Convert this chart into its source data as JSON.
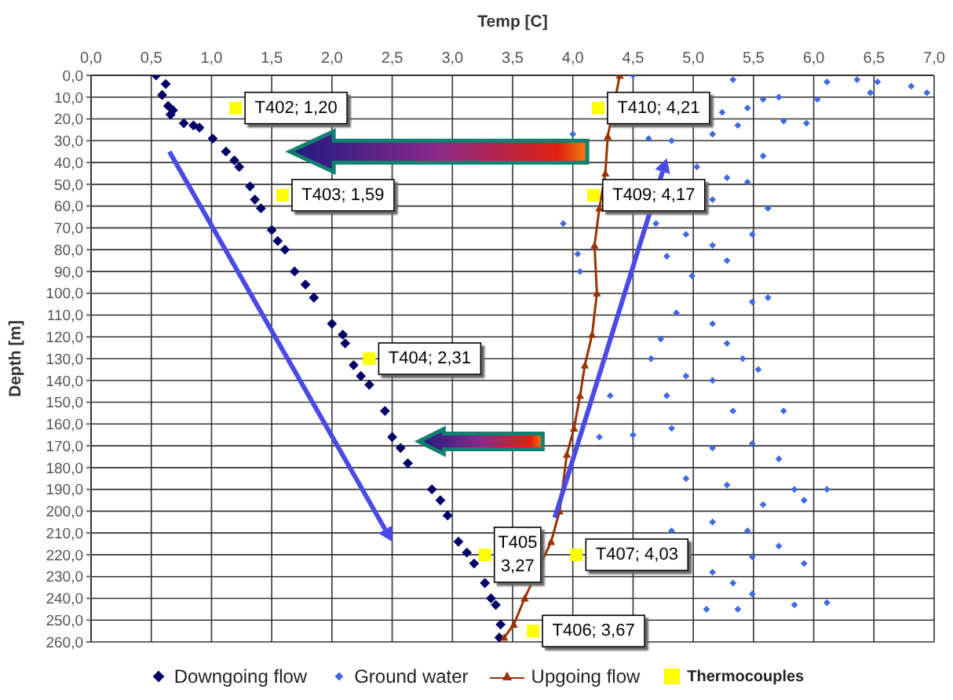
{
  "chart_data": {
    "type": "scatter",
    "xlabel": "Temp [C]",
    "ylabel": "Depth [m]",
    "xlim": [
      0,
      7
    ],
    "xticks": [
      {
        "value": 0,
        "label": "0,0"
      },
      {
        "value": 0.5,
        "label": "0,5"
      },
      {
        "value": 1,
        "label": "1,0"
      },
      {
        "value": 1.5,
        "label": "1,5"
      },
      {
        "value": 2,
        "label": "2,0"
      },
      {
        "value": 2.5,
        "label": "2,5"
      },
      {
        "value": 3,
        "label": "3,0"
      },
      {
        "value": 3.5,
        "label": "3,5"
      },
      {
        "value": 4,
        "label": "4,0"
      },
      {
        "value": 4.5,
        "label": "4,5"
      },
      {
        "value": 5,
        "label": "5,0"
      },
      {
        "value": 5.5,
        "label": "5,5"
      },
      {
        "value": 6,
        "label": "6,0"
      },
      {
        "value": 6.5,
        "label": "6,5"
      },
      {
        "value": 7,
        "label": "7,0"
      }
    ],
    "ylim": [
      260,
      0
    ],
    "yticks": [
      {
        "value": 0,
        "label": "0,0"
      },
      {
        "value": 10,
        "label": "10,0"
      },
      {
        "value": 20,
        "label": "20,0"
      },
      {
        "value": 30,
        "label": "30,0"
      },
      {
        "value": 40,
        "label": "40,0"
      },
      {
        "value": 50,
        "label": "50,0"
      },
      {
        "value": 60,
        "label": "60,0"
      },
      {
        "value": 70,
        "label": "70,0"
      },
      {
        "value": 80,
        "label": "80,0"
      },
      {
        "value": 90,
        "label": "90,0"
      },
      {
        "value": 100,
        "label": "100,0"
      },
      {
        "value": 110,
        "label": "110,0"
      },
      {
        "value": 120,
        "label": "120,0"
      },
      {
        "value": 130,
        "label": "130,0"
      },
      {
        "value": 140,
        "label": "140,0"
      },
      {
        "value": 150,
        "label": "150,0"
      },
      {
        "value": 160,
        "label": "160,0"
      },
      {
        "value": 170,
        "label": "170,0"
      },
      {
        "value": 180,
        "label": "180,0"
      },
      {
        "value": 190,
        "label": "190,0"
      },
      {
        "value": 200,
        "label": "200,0"
      },
      {
        "value": 210,
        "label": "210,0"
      },
      {
        "value": 220,
        "label": "220,0"
      },
      {
        "value": 230,
        "label": "230,0"
      },
      {
        "value": 240,
        "label": "240,0"
      },
      {
        "value": 250,
        "label": "250,0"
      },
      {
        "value": 260,
        "label": "260,0"
      }
    ],
    "grid": true,
    "legend": "bottom",
    "series": [
      {
        "name": "Downgoing flow",
        "marker": "diamond",
        "color": "#000066",
        "x": [
          0.54,
          0.62,
          0.59,
          0.64,
          0.68,
          0.66,
          0.77,
          0.85,
          0.9,
          1.01,
          1.12,
          1.19,
          1.23,
          1.32,
          1.36,
          1.41,
          1.5,
          1.55,
          1.61,
          1.69,
          1.78,
          1.85,
          2.0,
          2.09,
          2.11,
          2.18,
          2.24,
          2.31,
          2.44,
          2.5,
          2.57,
          2.63,
          2.83,
          2.9,
          2.96,
          3.05,
          3.12,
          3.18,
          3.27,
          3.32,
          3.36,
          3.4,
          3.39
        ],
        "values": [
          0,
          4,
          9,
          14,
          16,
          18,
          22,
          23,
          24,
          29,
          35,
          39,
          42,
          51,
          57,
          61,
          71,
          76,
          80,
          90,
          96,
          102,
          114,
          119,
          123,
          133,
          138,
          142,
          154,
          166,
          171,
          178,
          190,
          195,
          202,
          214,
          219,
          224,
          233,
          240,
          243,
          252,
          258
        ]
      },
      {
        "name": "Ground water",
        "marker": "diamond",
        "color": "#4169e1",
        "x": [
          4.5,
          5.33,
          6.11,
          6.36,
          6.53,
          6.81,
          6.94,
          6.47,
          6.03,
          5.71,
          5.58,
          5.24,
          5.45,
          5.75,
          5.94,
          5.37,
          4.63,
          4.82,
          5.16,
          4.0,
          5.58,
          5.03,
          5.28,
          5.45,
          5.16,
          5.62,
          4.69,
          3.92,
          4.94,
          5.16,
          5.49,
          4.04,
          4.78,
          5.28,
          4.06,
          4.99,
          5.49,
          5.62,
          4.86,
          5.16,
          4.73,
          5.28,
          5.41,
          4.65,
          4.94,
          5.16,
          5.54,
          4.78,
          4.31,
          5.33,
          5.75,
          4.82,
          4.22,
          4.5,
          5.16,
          5.49,
          5.71,
          4.94,
          5.28,
          5.84,
          6.11,
          5.58,
          5.92,
          5.16,
          4.82,
          5.45,
          5.49,
          5.71,
          5.16,
          5.92,
          5.33,
          5.11,
          5.37,
          5.84,
          6.11,
          5.49
        ],
        "values": [
          0,
          2,
          3,
          2,
          3,
          5,
          8,
          8,
          11,
          10,
          11,
          17,
          15,
          21,
          22,
          23,
          29,
          30,
          27,
          27,
          37,
          42,
          47,
          49,
          57,
          61,
          68,
          68,
          73,
          78,
          73,
          82,
          83,
          85,
          90,
          92,
          104,
          102,
          109,
          114,
          121,
          123,
          130,
          130,
          138,
          140,
          135,
          147,
          147,
          154,
          154,
          162,
          166,
          165,
          171,
          169,
          176,
          185,
          188,
          190,
          190,
          197,
          195,
          205,
          209,
          209,
          221,
          216,
          228,
          224,
          233,
          245,
          245,
          243,
          242,
          238
        ]
      },
      {
        "name": "Upgoing flow",
        "type": "line",
        "marker": "triangle",
        "color": "#993300",
        "x": [
          4.39,
          4.29,
          4.27,
          4.22,
          4.18,
          4.2,
          4.16,
          4.1,
          4.06,
          4.01,
          3.95,
          3.89,
          3.82,
          3.6,
          3.51,
          3.43
        ],
        "values": [
          0,
          28,
          45,
          61,
          78,
          100,
          119,
          133,
          147,
          162,
          174,
          200,
          214,
          240,
          252,
          258
        ]
      },
      {
        "name": "Thermocouples",
        "marker": "square",
        "color": "#ffff00",
        "x": [
          1.2,
          1.59,
          2.31,
          3.27,
          3.67,
          4.03,
          4.17,
          4.21
        ],
        "values": [
          15,
          55,
          130,
          220,
          255,
          220,
          55,
          15
        ]
      }
    ],
    "annotations": [
      {
        "text": "T402; 1,20",
        "x": 1.2,
        "y": 15
      },
      {
        "text": "T403; 1,59",
        "x": 1.59,
        "y": 55
      },
      {
        "text": "T404; 2,31",
        "x": 2.31,
        "y": 130
      },
      {
        "text": "T405\n3,27",
        "x": 3.27,
        "y": 220
      },
      {
        "text": "T406; 3,67",
        "x": 3.67,
        "y": 255
      },
      {
        "text": "T407; 4,03",
        "x": 4.03,
        "y": 220
      },
      {
        "text": "T409; 4,17",
        "x": 4.17,
        "y": 55
      },
      {
        "text": "T410; 4,21",
        "x": 4.21,
        "y": 15
      }
    ]
  }
}
